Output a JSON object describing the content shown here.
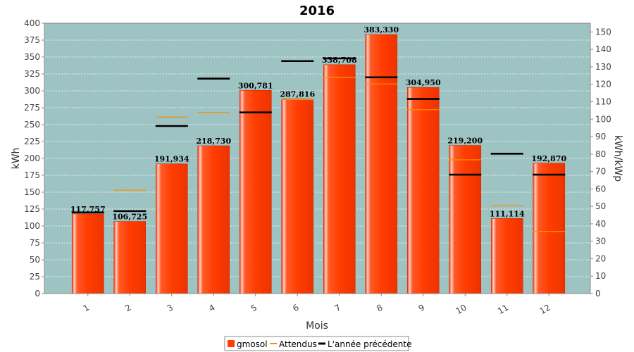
{
  "chart_data": {
    "type": "bar",
    "title": "2016",
    "xlabel": "Mois",
    "ylabel": "kWh",
    "y2label": "kWh/kWp",
    "categories": [
      "1",
      "2",
      "3",
      "4",
      "5",
      "6",
      "7",
      "8",
      "9",
      "10",
      "11",
      "12"
    ],
    "ylim": [
      0,
      400
    ],
    "y2lim": [
      0,
      155
    ],
    "yticks": [
      0,
      25,
      50,
      75,
      100,
      125,
      150,
      175,
      200,
      225,
      250,
      275,
      300,
      325,
      350,
      375,
      400
    ],
    "y2ticks": [
      0,
      10,
      20,
      30,
      40,
      50,
      60,
      70,
      80,
      90,
      100,
      110,
      120,
      130,
      140,
      150
    ],
    "series": [
      {
        "name": "gmosol",
        "kind": "bar",
        "color": "#ff3d00",
        "values": [
          117.757,
          106.725,
          191.934,
          218.73,
          300.781,
          287.816,
          338.708,
          383.33,
          304.95,
          219.2,
          111.114,
          192.87
        ],
        "labels": [
          "117,757",
          "106,725",
          "191,934",
          "218,730",
          "300,781",
          "287,816",
          "338,708",
          "383,330",
          "304,950",
          "219,200",
          "111,114",
          "192,870"
        ]
      },
      {
        "name": "Attendus",
        "kind": "marker",
        "color": "#ff8c00",
        "values": [
          120,
          153,
          261,
          268,
          268,
          287,
          320,
          310,
          272,
          198,
          130,
          92
        ]
      },
      {
        "name": "L'année précédente",
        "kind": "marker",
        "color": "#000000",
        "values": [
          120,
          122,
          248,
          318,
          268,
          344,
          348,
          320,
          288,
          176,
          207,
          176
        ]
      }
    ],
    "grid": true,
    "legend_position": "bottom"
  }
}
